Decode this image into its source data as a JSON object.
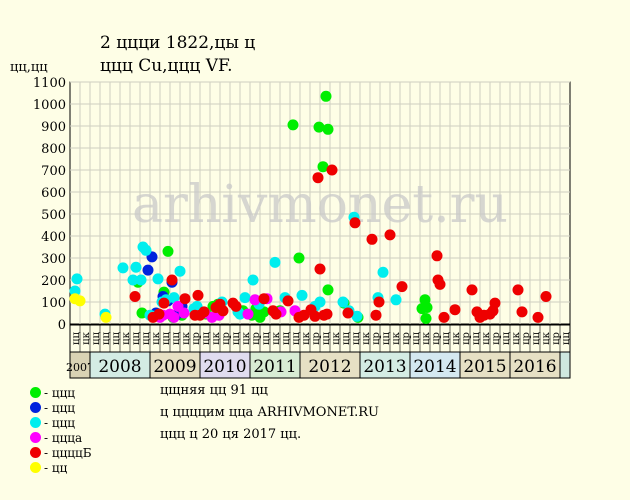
{
  "chart_data": {
    "type": "scatter",
    "title_lines": [
      "2 ццци 1822,цы ц",
      "ццц Cu,ццц VF."
    ],
    "ylabel": "цц,цц",
    "ylim": [
      0,
      1100
    ],
    "yticks": [
      0,
      100,
      200,
      300,
      400,
      500,
      600,
      700,
      800,
      900,
      1000,
      1100
    ],
    "grid": true,
    "watermark": "arhivmonet.ru",
    "x_ticks": [
      "цц",
      "цк",
      "цц",
      "цц",
      "цц",
      "цк",
      "цц",
      "цц",
      "цк",
      "цц",
      "цц",
      "цк",
      "цр",
      "цц",
      "цк",
      "цр",
      "цц",
      "цк",
      "цр",
      "цц",
      "цк",
      "цц",
      "цц",
      "цк",
      "цр",
      "цц",
      "цк",
      "цц",
      "цц",
      "цк",
      "цр",
      "цц",
      "цк",
      "цр",
      "цц",
      "цк",
      "цр",
      "цц",
      "цк",
      "цр",
      "цц",
      "цк",
      "цр",
      "цц",
      "цк",
      "цр",
      "цц",
      "цк",
      "цр",
      "цц"
    ],
    "years": [
      {
        "label": "2007",
        "start": 0,
        "span": 2,
        "color": "#d9d3b4"
      },
      {
        "label": "2008",
        "start": 2,
        "span": 6,
        "color": "#d4ece4"
      },
      {
        "label": "2009",
        "start": 8,
        "span": 5,
        "color": "#e6e0c4"
      },
      {
        "label": "2010",
        "start": 13,
        "span": 5,
        "color": "#e0dcef"
      },
      {
        "label": "2011",
        "start": 18,
        "span": 5,
        "color": "#d8ecd4"
      },
      {
        "label": "2012",
        "start": 23,
        "span": 6,
        "color": "#e6e0c4"
      },
      {
        "label": "2013",
        "start": 29,
        "span": 5,
        "color": "#d4ece4"
      },
      {
        "label": "2014",
        "start": 34,
        "span": 5,
        "color": "#d4e8f0"
      },
      {
        "label": "2015",
        "start": 39,
        "span": 5,
        "color": "#e6e0c4"
      },
      {
        "label": "2016",
        "start": 44,
        "span": 5,
        "color": "#e6e0c4"
      },
      {
        "label": "",
        "start": 49,
        "span": 1,
        "color": "#cfe8df"
      }
    ],
    "series": [
      {
        "name": "- ццц",
        "color": "#00ee00",
        "points": [
          [
            6.8,
            190
          ],
          [
            7.2,
            50
          ],
          [
            9.4,
            145
          ],
          [
            9.8,
            330
          ],
          [
            10.3,
            30
          ],
          [
            11.2,
            40
          ],
          [
            13.6,
            45
          ],
          [
            14.3,
            80
          ],
          [
            14.8,
            90
          ],
          [
            17.3,
            60
          ],
          [
            18.2,
            40
          ],
          [
            18.6,
            70
          ],
          [
            19.0,
            30
          ],
          [
            19.4,
            55
          ],
          [
            21.0,
            60
          ],
          [
            22.3,
            905
          ],
          [
            22.9,
            300
          ],
          [
            24.9,
            895
          ],
          [
            25.3,
            715
          ],
          [
            25.6,
            1035
          ],
          [
            25.8,
            885
          ],
          [
            25.8,
            155
          ],
          [
            27.4,
            95
          ],
          [
            28.8,
            30
          ],
          [
            35.2,
            70
          ],
          [
            35.5,
            110
          ],
          [
            35.6,
            25
          ],
          [
            35.7,
            75
          ]
        ]
      },
      {
        "name": "- ццц",
        "color": "#0022dd",
        "points": [
          [
            7.8,
            245
          ],
          [
            8.2,
            305
          ],
          [
            8.6,
            50
          ],
          [
            9.3,
            125
          ],
          [
            9.8,
            105
          ],
          [
            10.2,
            190
          ],
          [
            10.6,
            40
          ],
          [
            11.2,
            80
          ]
        ]
      },
      {
        "name": "- ццц",
        "color": "#00eeee",
        "points": [
          [
            0.5,
            150
          ],
          [
            0.7,
            205
          ],
          [
            3.5,
            45
          ],
          [
            5.3,
            255
          ],
          [
            6.3,
            200
          ],
          [
            6.6,
            258
          ],
          [
            7.1,
            200
          ],
          [
            7.3,
            350
          ],
          [
            7.6,
            335
          ],
          [
            8.0,
            40
          ],
          [
            8.4,
            35
          ],
          [
            8.8,
            205
          ],
          [
            9.2,
            100
          ],
          [
            9.6,
            110
          ],
          [
            10.4,
            120
          ],
          [
            11.0,
            240
          ],
          [
            12.4,
            70
          ],
          [
            12.7,
            80
          ],
          [
            13.2,
            55
          ],
          [
            15.2,
            100
          ],
          [
            16.8,
            55
          ],
          [
            17.0,
            45
          ],
          [
            17.5,
            120
          ],
          [
            18.3,
            200
          ],
          [
            18.9,
            90
          ],
          [
            20.5,
            280
          ],
          [
            21.5,
            120
          ],
          [
            23.2,
            130
          ],
          [
            24.5,
            80
          ],
          [
            25.0,
            100
          ],
          [
            27.3,
            100
          ],
          [
            27.9,
            60
          ],
          [
            28.4,
            485
          ],
          [
            28.7,
            35
          ],
          [
            30.8,
            120
          ],
          [
            31.3,
            235
          ],
          [
            32.6,
            110
          ]
        ]
      },
      {
        "name": "- ццца",
        "color": "#ff00ff",
        "points": [
          [
            9.0,
            30
          ],
          [
            9.3,
            40
          ],
          [
            10.0,
            45
          ],
          [
            10.4,
            30
          ],
          [
            10.8,
            80
          ],
          [
            11.4,
            50
          ],
          [
            13.5,
            50
          ],
          [
            14.2,
            30
          ],
          [
            14.9,
            40
          ],
          [
            17.8,
            45
          ],
          [
            18.5,
            110
          ],
          [
            19.7,
            115
          ],
          [
            21.1,
            55
          ],
          [
            22.5,
            60
          ]
        ]
      },
      {
        "name": "- ццццБ",
        "color": "#ee0000",
        "points": [
          [
            6.5,
            125
          ],
          [
            8.3,
            30
          ],
          [
            8.9,
            45
          ],
          [
            9.4,
            95
          ],
          [
            10.2,
            200
          ],
          [
            11.5,
            115
          ],
          [
            12.5,
            40
          ],
          [
            12.8,
            130
          ],
          [
            13.0,
            40
          ],
          [
            13.4,
            55
          ],
          [
            14.6,
            75
          ],
          [
            15.0,
            90
          ],
          [
            15.3,
            60
          ],
          [
            16.3,
            95
          ],
          [
            16.6,
            80
          ],
          [
            19.4,
            115
          ],
          [
            20.3,
            60
          ],
          [
            20.6,
            45
          ],
          [
            21.8,
            105
          ],
          [
            22.9,
            30
          ],
          [
            23.4,
            40
          ],
          [
            24.1,
            65
          ],
          [
            24.5,
            35
          ],
          [
            24.8,
            665
          ],
          [
            25.0,
            250
          ],
          [
            25.4,
            40
          ],
          [
            25.7,
            45
          ],
          [
            26.2,
            700
          ],
          [
            27.8,
            50
          ],
          [
            28.5,
            460
          ],
          [
            30.2,
            385
          ],
          [
            30.6,
            40
          ],
          [
            30.9,
            100
          ],
          [
            32.0,
            405
          ],
          [
            33.2,
            170
          ],
          [
            36.7,
            310
          ],
          [
            36.8,
            200
          ],
          [
            37.0,
            180
          ],
          [
            37.4,
            30
          ],
          [
            38.5,
            65
          ],
          [
            40.2,
            155
          ],
          [
            40.7,
            55
          ],
          [
            41.0,
            30
          ],
          [
            41.4,
            40
          ],
          [
            42.0,
            45
          ],
          [
            42.3,
            60
          ],
          [
            42.5,
            95
          ],
          [
            44.8,
            155
          ],
          [
            45.2,
            55
          ],
          [
            46.8,
            30
          ],
          [
            47.6,
            125
          ]
        ]
      },
      {
        "name": "- цц",
        "color": "#ffff00",
        "points": [
          [
            0.5,
            115
          ],
          [
            1.0,
            105
          ],
          [
            3.6,
            30
          ]
        ]
      }
    ]
  },
  "notes": [
    "цщняя цц 91 цц",
    "ц ццццим цца ARHIVMONET.RU",
    "ццц ц 20 ця 2017 цц."
  ]
}
